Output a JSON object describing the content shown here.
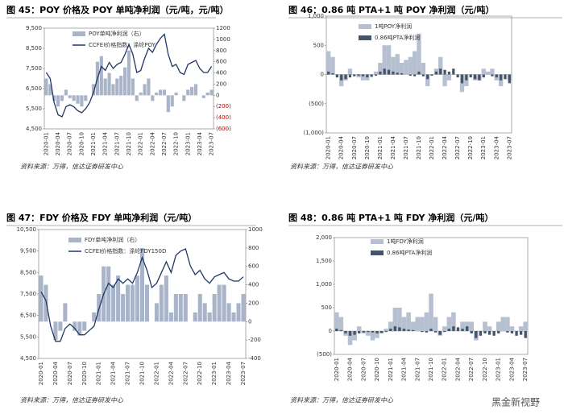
{
  "watermark": "黑金新视野",
  "chart_data": [
    {
      "type": "combo",
      "title": "图 45：POY 价格及 POY 单吨净利润（元/吨，元/吨）",
      "source": "资料来源：万得，信达证券研发中心",
      "x": [
        "2020-01",
        "2020-02",
        "2020-03",
        "2020-04",
        "2020-05",
        "2020-06",
        "2020-07",
        "2020-08",
        "2020-09",
        "2020-10",
        "2020-11",
        "2020-12",
        "2021-01",
        "2021-02",
        "2021-03",
        "2021-04",
        "2021-05",
        "2021-06",
        "2021-07",
        "2021-08",
        "2021-09",
        "2021-10",
        "2021-11",
        "2021-12",
        "2022-01",
        "2022-02",
        "2022-03",
        "2022-04",
        "2022-05",
        "2022-06",
        "2022-07",
        "2022-08",
        "2022-09",
        "2022-10",
        "2022-11",
        "2022-12",
        "2023-01",
        "2023-02",
        "2023-03",
        "2023-04",
        "2023-05",
        "2023-06",
        "2023-07"
      ],
      "xticks": [
        "2020-01",
        "2020-04",
        "2020-07",
        "2020-10",
        "2021-01",
        "2021-04",
        "2021-07",
        "2021-10",
        "2022-01",
        "2022-04",
        "2022-07",
        "2022-10",
        "2023-01",
        "2023-04",
        "2023-07"
      ],
      "series": [
        {
          "name": "POY单吨净利润（右）",
          "kind": "bar",
          "axis": "y2",
          "color": "#a9b4c8",
          "values": [
            300,
            200,
            -100,
            -200,
            -100,
            100,
            -50,
            -100,
            -150,
            -200,
            -100,
            0,
            200,
            600,
            700,
            300,
            400,
            200,
            300,
            350,
            500,
            800,
            300,
            -100,
            50,
            200,
            300,
            -100,
            50,
            100,
            100,
            -300,
            -200,
            50,
            0,
            -100,
            100,
            150,
            200,
            0,
            -50,
            50,
            100
          ]
        },
        {
          "name": "CCFEI价格指数：涤纶POY",
          "kind": "line",
          "color": "#1f3864",
          "values": [
            7300,
            7000,
            5800,
            5200,
            5100,
            5600,
            5700,
            5600,
            5400,
            5300,
            5500,
            5800,
            6300,
            7000,
            7600,
            7400,
            7800,
            7500,
            7700,
            7800,
            8200,
            8700,
            8200,
            7300,
            7400,
            8000,
            8500,
            8300,
            8700,
            9000,
            9200,
            8200,
            7600,
            7700,
            7300,
            7200,
            7700,
            7800,
            7900,
            7500,
            7300,
            7300,
            7600
          ]
        }
      ],
      "ylim": [
        4500,
        9500
      ],
      "yticks": [
        {
          "value": 4500,
          "label": "4,500"
        },
        {
          "value": 5500,
          "label": "5,500"
        },
        {
          "value": 6500,
          "label": "6,500"
        },
        {
          "value": 7500,
          "label": "7,500"
        },
        {
          "value": 8500,
          "label": "8,500"
        },
        {
          "value": 9500,
          "label": "9,500"
        }
      ],
      "y2lim": [
        -600,
        1200
      ],
      "y2ticks": [
        {
          "value": -600,
          "label": "(600)"
        },
        {
          "value": -400,
          "label": "(400)"
        },
        {
          "value": -200,
          "label": "(200)"
        },
        0,
        200,
        400,
        600,
        800,
        1000,
        1200
      ],
      "y2tick_negative_color": "#c00000"
    },
    {
      "type": "area",
      "title": "图 46：0.86 吨 PTA+1 吨 POY 净利润（元/吨）",
      "source": "资料来源：万得，信达证券研发中心",
      "x": [
        "2020-01",
        "2020-02",
        "2020-03",
        "2020-04",
        "2020-05",
        "2020-06",
        "2020-07",
        "2020-08",
        "2020-09",
        "2020-10",
        "2020-11",
        "2020-12",
        "2021-01",
        "2021-02",
        "2021-03",
        "2021-04",
        "2021-05",
        "2021-06",
        "2021-07",
        "2021-08",
        "2021-09",
        "2021-10",
        "2021-11",
        "2021-12",
        "2022-01",
        "2022-02",
        "2022-03",
        "2022-04",
        "2022-05",
        "2022-06",
        "2022-07",
        "2022-08",
        "2022-09",
        "2022-10",
        "2022-11",
        "2022-12",
        "2023-01",
        "2023-02",
        "2023-03",
        "2023-04",
        "2023-05",
        "2023-06",
        "2023-07"
      ],
      "xticks": [
        "2020-01",
        "2020-04",
        "2020-07",
        "2020-10",
        "2021-01",
        "2021-04",
        "2021-07",
        "2021-10",
        "2022-01",
        "2022-04",
        "2022-07",
        "2022-10",
        "2023-01",
        "2023-04",
        "2023-07"
      ],
      "series": [
        {
          "name": "1吨POY净利润",
          "color": "#b7c0d0",
          "values": [
            400,
            300,
            0,
            -200,
            -100,
            100,
            0,
            -50,
            -100,
            -100,
            0,
            50,
            200,
            500,
            500,
            300,
            350,
            200,
            250,
            300,
            400,
            700,
            200,
            -200,
            0,
            100,
            300,
            -200,
            -100,
            0,
            0,
            -300,
            -200,
            0,
            -100,
            -100,
            100,
            50,
            100,
            -100,
            -200,
            0,
            -100
          ]
        },
        {
          "name": "0.86吨PTA净利润",
          "color": "#44546a",
          "values": [
            50,
            20,
            -50,
            -100,
            -80,
            -50,
            -30,
            -20,
            -30,
            -50,
            -40,
            -20,
            50,
            100,
            80,
            50,
            30,
            20,
            0,
            -20,
            -30,
            50,
            -30,
            -80,
            -20,
            50,
            100,
            80,
            50,
            100,
            -50,
            -150,
            -100,
            -50,
            -80,
            -100,
            -50,
            0,
            -30,
            -50,
            -100,
            -80,
            -150
          ]
        }
      ],
      "ylim": [
        -1000,
        1000
      ],
      "yticks": [
        {
          "value": -1000,
          "label": "(1,000)"
        },
        {
          "value": -500,
          "label": "(500)"
        },
        0,
        500,
        {
          "value": 1000,
          "label": "1,000"
        }
      ]
    },
    {
      "type": "combo",
      "title": "图 47：FDY 价格及 FDY 单吨净利润（元/吨）",
      "source": "资料来源：万得，信达证券研发中心",
      "x": [
        "2020-01",
        "2020-02",
        "2020-03",
        "2020-04",
        "2020-05",
        "2020-06",
        "2020-07",
        "2020-08",
        "2020-09",
        "2020-10",
        "2020-11",
        "2020-12",
        "2021-01",
        "2021-02",
        "2021-03",
        "2021-04",
        "2021-05",
        "2021-06",
        "2021-07",
        "2021-08",
        "2021-09",
        "2021-10",
        "2021-11",
        "2021-12",
        "2022-01",
        "2022-02",
        "2022-03",
        "2022-04",
        "2022-05",
        "2022-06",
        "2022-07",
        "2022-08",
        "2022-09",
        "2022-10",
        "2022-11",
        "2022-12",
        "2023-01",
        "2023-02",
        "2023-03",
        "2023-04",
        "2023-05",
        "2023-06",
        "2023-07"
      ],
      "xticks": [
        "2020-01",
        "2020-04",
        "2020-07",
        "2020-10",
        "2021-01",
        "2021-04",
        "2021-07",
        "2021-10",
        "2022-01",
        "2022-04",
        "2022-07",
        "2022-10",
        "2023-01",
        "2023-04",
        "2023-07"
      ],
      "series": [
        {
          "name": "FDY单吨净利润（右）",
          "kind": "bar",
          "axis": "y2",
          "color": "#a9b4c8",
          "values": [
            500,
            400,
            0,
            -200,
            -100,
            200,
            0,
            -100,
            -150,
            -100,
            0,
            100,
            300,
            600,
            600,
            400,
            500,
            300,
            400,
            400,
            500,
            800,
            400,
            0,
            200,
            400,
            500,
            100,
            300,
            300,
            300,
            0,
            100,
            300,
            200,
            100,
            300,
            400,
            400,
            200,
            100,
            200,
            300
          ]
        },
        {
          "name": "CCFEI价格指数：涤纶FDY150D",
          "kind": "line",
          "color": "#1f3864",
          "values": [
            7600,
            7200,
            6000,
            5300,
            5300,
            5900,
            6100,
            5900,
            5600,
            5600,
            5800,
            6000,
            6800,
            7500,
            8000,
            7800,
            8200,
            8000,
            8200,
            8000,
            8500,
            9200,
            8600,
            7800,
            8000,
            8500,
            9000,
            8500,
            9300,
            9500,
            9600,
            8800,
            8400,
            8600,
            8200,
            8000,
            8300,
            8400,
            8500,
            8200,
            8100,
            8100,
            8300
          ]
        }
      ],
      "ylim": [
        4500,
        10500
      ],
      "yticks": [
        {
          "value": 4500,
          "label": "4,500"
        },
        {
          "value": 5500,
          "label": "5,500"
        },
        {
          "value": 6500,
          "label": "6,500"
        },
        {
          "value": 7500,
          "label": "7,500"
        },
        {
          "value": 8500,
          "label": "8,500"
        },
        {
          "value": 9500,
          "label": "9,500"
        },
        {
          "value": 10500,
          "label": "10,500"
        }
      ],
      "y2lim": [
        -400,
        1000
      ],
      "y2ticks": [
        -400,
        -200,
        0,
        200,
        400,
        600,
        800,
        1000
      ]
    },
    {
      "type": "area",
      "title": "图 48：0.86 吨 PTA+1 吨 FDY 净利润（元/吨）",
      "source": "资料来源：万得，信达证券研发中心",
      "x": [
        "2020-01",
        "2020-02",
        "2020-03",
        "2020-04",
        "2020-05",
        "2020-06",
        "2020-07",
        "2020-08",
        "2020-09",
        "2020-10",
        "2020-11",
        "2020-12",
        "2021-01",
        "2021-02",
        "2021-03",
        "2021-04",
        "2021-05",
        "2021-06",
        "2021-07",
        "2021-08",
        "2021-09",
        "2021-10",
        "2021-11",
        "2021-12",
        "2022-01",
        "2022-02",
        "2022-03",
        "2022-04",
        "2022-05",
        "2022-06",
        "2022-07",
        "2022-08",
        "2022-09",
        "2022-10",
        "2022-11",
        "2022-12",
        "2023-01",
        "2023-02",
        "2023-03",
        "2023-04",
        "2023-05",
        "2023-06",
        "2023-07"
      ],
      "xticks": [
        "2020-01",
        "2020-04",
        "2020-07",
        "2020-10",
        "2021-01",
        "2021-04",
        "2021-07",
        "2021-10",
        "2022-01",
        "2022-04",
        "2022-07",
        "2022-10",
        "2023-01",
        "2023-04",
        "2023-07"
      ],
      "series": [
        {
          "name": "1吨FDY净利润",
          "color": "#b7c0d0",
          "values": [
            400,
            300,
            -100,
            -300,
            -200,
            100,
            -50,
            -100,
            -200,
            -150,
            -50,
            50,
            200,
            500,
            500,
            300,
            400,
            200,
            300,
            300,
            400,
            800,
            300,
            -100,
            100,
            300,
            400,
            0,
            200,
            200,
            200,
            -200,
            0,
            200,
            100,
            0,
            200,
            300,
            300,
            100,
            0,
            100,
            200
          ]
        },
        {
          "name": "0.86吨PTA净利润",
          "color": "#44546a",
          "values": [
            50,
            20,
            -50,
            -100,
            -80,
            -50,
            -30,
            -20,
            -30,
            -50,
            -40,
            -20,
            50,
            100,
            80,
            50,
            30,
            20,
            0,
            -20,
            -30,
            50,
            -30,
            -80,
            -20,
            50,
            100,
            80,
            50,
            100,
            -50,
            -150,
            -100,
            -50,
            -80,
            -100,
            -50,
            0,
            -30,
            -50,
            -100,
            -80,
            -150
          ]
        }
      ],
      "ylim": [
        -500,
        2000
      ],
      "yticks": [
        {
          "value": -500,
          "label": "(500)"
        },
        0,
        500,
        {
          "value": 1000,
          "label": "1,000"
        },
        {
          "value": 1500,
          "label": "1,500"
        },
        {
          "value": 2000,
          "label": "2,000"
        }
      ]
    }
  ]
}
